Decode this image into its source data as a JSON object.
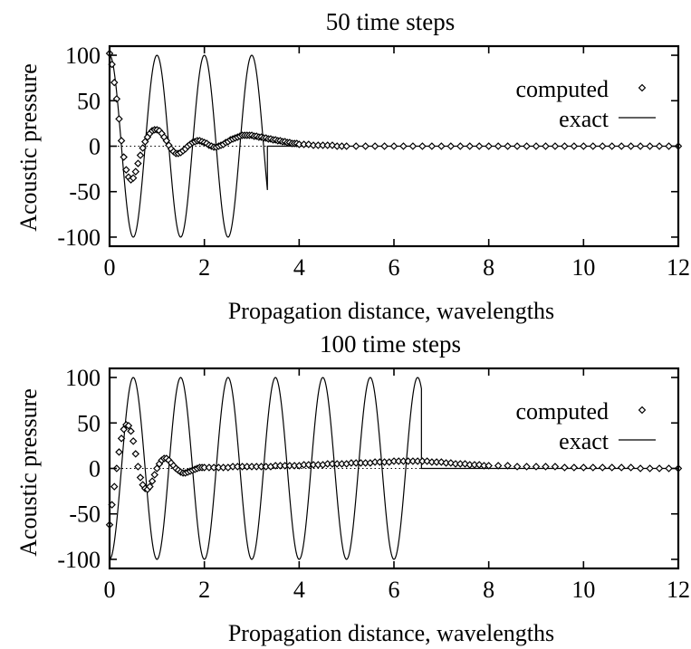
{
  "chart_data": [
    {
      "type": "line",
      "title": "50 time steps",
      "xlabel": "Propagation distance, wavelengths",
      "ylabel": "Acoustic pressure",
      "xlim": [
        0,
        12
      ],
      "ylim": [
        -110,
        110
      ],
      "xticks": [
        0,
        2,
        4,
        6,
        8,
        10,
        12
      ],
      "yticks": [
        100,
        50,
        0,
        -50,
        -100
      ],
      "legend_position": "top-right",
      "series": [
        {
          "name": "computed",
          "marker": "diamond",
          "points": [
            [
              0.0,
              102
            ],
            [
              0.05,
              90
            ],
            [
              0.1,
              70
            ],
            [
              0.15,
              52
            ],
            [
              0.2,
              30
            ],
            [
              0.25,
              6
            ],
            [
              0.3,
              -12
            ],
            [
              0.35,
              -26
            ],
            [
              0.4,
              -34
            ],
            [
              0.45,
              -37
            ],
            [
              0.5,
              -35
            ],
            [
              0.55,
              -28
            ],
            [
              0.6,
              -19
            ],
            [
              0.65,
              -10
            ],
            [
              0.7,
              -2
            ],
            [
              0.75,
              5
            ],
            [
              0.8,
              10
            ],
            [
              0.85,
              14
            ],
            [
              0.9,
              17
            ],
            [
              0.95,
              18
            ],
            [
              1.0,
              18
            ],
            [
              1.05,
              17
            ],
            [
              1.1,
              14
            ],
            [
              1.15,
              10
            ],
            [
              1.2,
              6
            ],
            [
              1.25,
              1
            ],
            [
              1.3,
              -3
            ],
            [
              1.35,
              -6
            ],
            [
              1.4,
              -8
            ],
            [
              1.45,
              -8
            ],
            [
              1.5,
              -7
            ],
            [
              1.55,
              -5
            ],
            [
              1.6,
              -3
            ],
            [
              1.65,
              0
            ],
            [
              1.7,
              2
            ],
            [
              1.75,
              4
            ],
            [
              1.8,
              5
            ],
            [
              1.85,
              6
            ],
            [
              1.9,
              6
            ],
            [
              1.95,
              5
            ],
            [
              2.0,
              4
            ],
            [
              2.05,
              3
            ],
            [
              2.1,
              1
            ],
            [
              2.15,
              0
            ],
            [
              2.2,
              -1
            ],
            [
              2.25,
              -1
            ],
            [
              2.3,
              0
            ],
            [
              2.35,
              1
            ],
            [
              2.4,
              2
            ],
            [
              2.45,
              4
            ],
            [
              2.5,
              5
            ],
            [
              2.55,
              7
            ],
            [
              2.6,
              8
            ],
            [
              2.65,
              9
            ],
            [
              2.7,
              10
            ],
            [
              2.75,
              11
            ],
            [
              2.8,
              12
            ],
            [
              2.85,
              12
            ],
            [
              2.9,
              12
            ],
            [
              2.95,
              12
            ],
            [
              3.0,
              12
            ],
            [
              3.05,
              11
            ],
            [
              3.1,
              11
            ],
            [
              3.15,
              10
            ],
            [
              3.2,
              10
            ],
            [
              3.25,
              9
            ],
            [
              3.3,
              9
            ],
            [
              3.35,
              8
            ],
            [
              3.4,
              8
            ],
            [
              3.45,
              7
            ],
            [
              3.5,
              7
            ],
            [
              3.55,
              6
            ],
            [
              3.6,
              6
            ],
            [
              3.65,
              5
            ],
            [
              3.7,
              5
            ],
            [
              3.75,
              4
            ],
            [
              3.8,
              4
            ],
            [
              3.85,
              3
            ],
            [
              3.9,
              3
            ],
            [
              3.95,
              3
            ],
            [
              4.0,
              2
            ],
            [
              4.1,
              2
            ],
            [
              4.2,
              2
            ],
            [
              4.3,
              1
            ],
            [
              4.4,
              1
            ],
            [
              4.5,
              1
            ],
            [
              4.6,
              1
            ],
            [
              4.7,
              1
            ],
            [
              4.8,
              0
            ],
            [
              4.9,
              0
            ],
            [
              5.0,
              0
            ],
            [
              5.2,
              0
            ],
            [
              5.4,
              0
            ],
            [
              5.6,
              0
            ],
            [
              5.8,
              0
            ],
            [
              6.0,
              0
            ],
            [
              6.2,
              0
            ],
            [
              6.4,
              0
            ],
            [
              6.6,
              0
            ],
            [
              6.8,
              0
            ],
            [
              7.0,
              0
            ],
            [
              7.2,
              0
            ],
            [
              7.4,
              0
            ],
            [
              7.6,
              0
            ],
            [
              7.8,
              0
            ],
            [
              8.0,
              0
            ],
            [
              8.2,
              0
            ],
            [
              8.4,
              0
            ],
            [
              8.6,
              0
            ],
            [
              8.8,
              0
            ],
            [
              9.0,
              0
            ],
            [
              9.2,
              0
            ],
            [
              9.4,
              0
            ],
            [
              9.6,
              0
            ],
            [
              9.8,
              0
            ],
            [
              10.0,
              0
            ],
            [
              10.2,
              0
            ],
            [
              10.4,
              0
            ],
            [
              10.6,
              0
            ],
            [
              10.8,
              0
            ],
            [
              11.0,
              0
            ],
            [
              11.2,
              0
            ],
            [
              11.4,
              0
            ],
            [
              11.6,
              0
            ],
            [
              11.8,
              0
            ],
            [
              12.0,
              0
            ]
          ]
        },
        {
          "name": "exact",
          "style": "line",
          "function": "cosine",
          "amplitude": 100,
          "wavelength": 1.0,
          "extent": [
            0,
            3.33
          ]
        }
      ]
    },
    {
      "type": "line",
      "title": "100 time steps",
      "xlabel": "Propagation distance, wavelengths",
      "ylabel": "Acoustic pressure",
      "xlim": [
        0,
        12
      ],
      "ylim": [
        -110,
        110
      ],
      "xticks": [
        0,
        2,
        4,
        6,
        8,
        10,
        12
      ],
      "yticks": [
        100,
        50,
        0,
        -50,
        -100
      ],
      "legend_position": "top-right",
      "series": [
        {
          "name": "computed",
          "marker": "diamond",
          "points": [
            [
              0.0,
              -62
            ],
            [
              0.05,
              -40
            ],
            [
              0.1,
              -20
            ],
            [
              0.15,
              0
            ],
            [
              0.2,
              18
            ],
            [
              0.25,
              33
            ],
            [
              0.3,
              43
            ],
            [
              0.35,
              48
            ],
            [
              0.4,
              47
            ],
            [
              0.45,
              41
            ],
            [
              0.5,
              30
            ],
            [
              0.55,
              16
            ],
            [
              0.6,
              2
            ],
            [
              0.65,
              -10
            ],
            [
              0.7,
              -18
            ],
            [
              0.75,
              -22
            ],
            [
              0.8,
              -23
            ],
            [
              0.85,
              -20
            ],
            [
              0.9,
              -14
            ],
            [
              0.95,
              -7
            ],
            [
              1.0,
              0
            ],
            [
              1.05,
              5
            ],
            [
              1.1,
              9
            ],
            [
              1.15,
              11
            ],
            [
              1.2,
              11
            ],
            [
              1.25,
              9
            ],
            [
              1.3,
              6
            ],
            [
              1.35,
              3
            ],
            [
              1.4,
              0
            ],
            [
              1.45,
              -2
            ],
            [
              1.5,
              -4
            ],
            [
              1.55,
              -5
            ],
            [
              1.6,
              -5
            ],
            [
              1.65,
              -4
            ],
            [
              1.7,
              -3
            ],
            [
              1.75,
              -2
            ],
            [
              1.8,
              -1
            ],
            [
              1.85,
              0
            ],
            [
              1.9,
              1
            ],
            [
              1.95,
              1
            ],
            [
              2.0,
              1
            ],
            [
              2.1,
              1
            ],
            [
              2.2,
              1
            ],
            [
              2.3,
              1
            ],
            [
              2.4,
              1
            ],
            [
              2.5,
              1
            ],
            [
              2.6,
              2
            ],
            [
              2.7,
              2
            ],
            [
              2.8,
              2
            ],
            [
              2.9,
              2
            ],
            [
              3.0,
              2
            ],
            [
              3.1,
              2
            ],
            [
              3.2,
              2
            ],
            [
              3.3,
              2
            ],
            [
              3.4,
              2
            ],
            [
              3.5,
              3
            ],
            [
              3.6,
              3
            ],
            [
              3.7,
              3
            ],
            [
              3.8,
              3
            ],
            [
              3.9,
              3
            ],
            [
              4.0,
              3
            ],
            [
              4.1,
              4
            ],
            [
              4.2,
              4
            ],
            [
              4.3,
              4
            ],
            [
              4.4,
              4
            ],
            [
              4.5,
              4
            ],
            [
              4.6,
              5
            ],
            [
              4.7,
              5
            ],
            [
              4.8,
              5
            ],
            [
              4.9,
              5
            ],
            [
              5.0,
              5
            ],
            [
              5.1,
              6
            ],
            [
              5.2,
              6
            ],
            [
              5.3,
              6
            ],
            [
              5.4,
              6
            ],
            [
              5.5,
              6
            ],
            [
              5.6,
              7
            ],
            [
              5.7,
              7
            ],
            [
              5.8,
              7
            ],
            [
              5.9,
              7
            ],
            [
              6.0,
              8
            ],
            [
              6.1,
              8
            ],
            [
              6.2,
              8
            ],
            [
              6.3,
              8
            ],
            [
              6.4,
              8
            ],
            [
              6.5,
              8
            ],
            [
              6.6,
              8
            ],
            [
              6.7,
              8
            ],
            [
              6.8,
              7
            ],
            [
              6.9,
              7
            ],
            [
              7.0,
              7
            ],
            [
              7.1,
              6
            ],
            [
              7.2,
              6
            ],
            [
              7.3,
              5
            ],
            [
              7.4,
              5
            ],
            [
              7.5,
              5
            ],
            [
              7.6,
              4
            ],
            [
              7.7,
              4
            ],
            [
              7.8,
              4
            ],
            [
              7.9,
              3
            ],
            [
              8.0,
              3
            ],
            [
              8.2,
              3
            ],
            [
              8.4,
              3
            ],
            [
              8.6,
              2
            ],
            [
              8.8,
              2
            ],
            [
              9.0,
              2
            ],
            [
              9.2,
              2
            ],
            [
              9.4,
              2
            ],
            [
              9.6,
              1
            ],
            [
              9.8,
              1
            ],
            [
              10.0,
              1
            ],
            [
              10.2,
              1
            ],
            [
              10.4,
              1
            ],
            [
              10.6,
              1
            ],
            [
              10.8,
              1
            ],
            [
              11.0,
              1
            ],
            [
              11.2,
              0
            ],
            [
              11.4,
              0
            ],
            [
              11.6,
              0
            ],
            [
              11.8,
              0
            ],
            [
              12.0,
              0
            ]
          ]
        },
        {
          "name": "exact",
          "style": "line",
          "function": "cosine",
          "amplitude": 100,
          "wavelength": 1.0,
          "phase_shift": 0.5,
          "extent": [
            0,
            6.58
          ]
        }
      ]
    }
  ]
}
